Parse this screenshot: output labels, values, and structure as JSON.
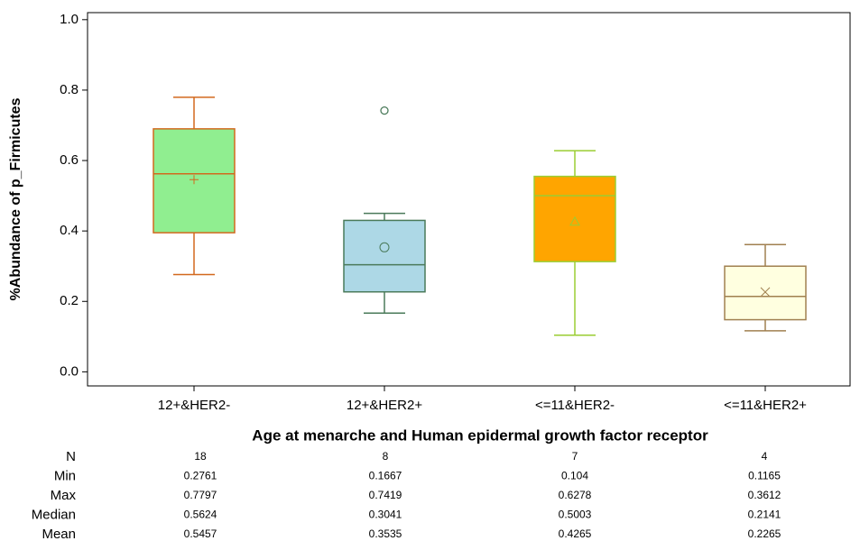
{
  "chart_data": {
    "type": "box",
    "y_label": "%Abundance of p_Firmicutes",
    "x_label": "Age at menarche and Human epidermal growth factor receptor",
    "categories": [
      "12+&HER2-",
      "12+&HER2+",
      "<=11&HER2-",
      "<=11&HER2+"
    ],
    "ylim": [
      -0.04,
      1.02
    ],
    "yticks": [
      {
        "value": 0,
        "label": "0.0"
      },
      0.2,
      0.4,
      0.6,
      0.8,
      {
        "value": 1,
        "label": "1.0"
      }
    ],
    "boxes": [
      {
        "fill": "#90ee90",
        "edge": "#d2691e",
        "mean_marker": "plus",
        "whisker_low": 0.2761,
        "q1": 0.395,
        "median": 0.5624,
        "q3": 0.69,
        "whisker_high": 0.7797,
        "mean": 0.5457,
        "outliers": []
      },
      {
        "fill": "#add8e6",
        "edge": "#4a7a5a",
        "mean_marker": "circle",
        "whisker_low": 0.1667,
        "q1": 0.227,
        "median": 0.3041,
        "q3": 0.43,
        "whisker_high": 0.45,
        "mean": 0.3535,
        "outliers": [
          0.7419
        ]
      },
      {
        "fill": "#ffa500",
        "edge": "#9acd32",
        "mean_marker": "triangle",
        "whisker_low": 0.104,
        "q1": 0.313,
        "median": 0.5003,
        "q3": 0.555,
        "whisker_high": 0.6278,
        "mean": 0.4265,
        "outliers": []
      },
      {
        "fill": "#ffffe0",
        "edge": "#a08050",
        "mean_marker": "x",
        "whisker_low": 0.1165,
        "q1": 0.148,
        "median": 0.2141,
        "q3": 0.3,
        "whisker_high": 0.3612,
        "mean": 0.2265,
        "outliers": []
      }
    ]
  },
  "stats_table": {
    "rows": [
      {
        "label": "N",
        "values": [
          18,
          8,
          7,
          4
        ]
      },
      {
        "label": "Min",
        "values": [
          0.2761,
          0.1667,
          0.104,
          0.1165
        ]
      },
      {
        "label": "Max",
        "values": [
          0.7797,
          0.7419,
          0.6278,
          0.3612
        ]
      },
      {
        "label": "Median",
        "values": [
          0.5624,
          0.3041,
          0.5003,
          0.2141
        ]
      },
      {
        "label": "Mean",
        "values": [
          0.5457,
          0.3535,
          0.4265,
          0.2265
        ]
      }
    ]
  }
}
